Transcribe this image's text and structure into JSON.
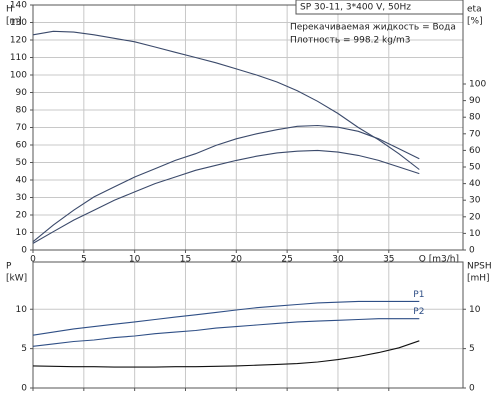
{
  "chart_data": [
    {
      "type": "line",
      "info": [
        "SP 30-11, 3*400 V, 50Hz",
        "Перекачиваемая жидкость = Вода",
        "Плотность = 998.2 kg/m3"
      ],
      "ylabel": "H",
      "yunit": "[m]",
      "y2label": "eta",
      "y2unit": "[%]",
      "xlabel": "Q [m3/h]",
      "xlim": [
        0,
        42.3
      ],
      "xticks": [
        0,
        5,
        10,
        15,
        20,
        25,
        30,
        35
      ],
      "xtick_labels": true,
      "ylim": [
        0,
        140
      ],
      "yticks": [
        0,
        10,
        20,
        30,
        40,
        50,
        60,
        70,
        80,
        90,
        100,
        110,
        120,
        130,
        140
      ],
      "y2lim": [
        0,
        147.6
      ],
      "y2ticks": [
        0,
        10,
        20,
        30,
        40,
        50,
        60,
        70,
        80,
        90,
        100
      ],
      "grid": true,
      "x": [
        0,
        2,
        4,
        6,
        8,
        10,
        12,
        14,
        16,
        18,
        20,
        22,
        24,
        26,
        28,
        30,
        32,
        34,
        36,
        38
      ],
      "series": [
        {
          "color": "#3b4a6b",
          "values": [
            123,
            125,
            124.5,
            123,
            121,
            119,
            116,
            113,
            110,
            107,
            103.5,
            100,
            96,
            91,
            85,
            78,
            70,
            63,
            55,
            46
          ]
        },
        {
          "color": "#3b4a6b",
          "axis": "y2",
          "values": [
            5,
            15,
            24,
            32,
            38,
            44,
            49,
            54,
            58,
            63,
            67,
            70,
            72.5,
            74.5,
            75,
            74,
            71.5,
            67,
            61,
            55
          ]
        },
        {
          "color": "#3b4a6b",
          "axis": "y2",
          "values": [
            4,
            11,
            18,
            24,
            30,
            35,
            40,
            44,
            48,
            51,
            54,
            56.5,
            58.5,
            59.5,
            60,
            59,
            57,
            54,
            50,
            46
          ]
        }
      ]
    },
    {
      "type": "line",
      "ylabel": "P",
      "yunit": "[kW]",
      "y2label": "NPSH",
      "y2unit": "[mH]",
      "xlim": [
        0,
        42.3
      ],
      "xticks": [
        0,
        5,
        10,
        15,
        20,
        25,
        30,
        35
      ],
      "xtick_labels": false,
      "ylim": [
        0,
        16
      ],
      "yticks": [
        0,
        5,
        10
      ],
      "y2lim": [
        0,
        16
      ],
      "y2ticks": [
        0,
        5,
        10
      ],
      "grid": true,
      "x": [
        0,
        2,
        4,
        6,
        8,
        10,
        12,
        14,
        16,
        18,
        20,
        22,
        24,
        26,
        28,
        30,
        32,
        34,
        36,
        38
      ],
      "series": [
        {
          "name": "P1",
          "color": "#2f4f86",
          "values": [
            6.7,
            7.1,
            7.5,
            7.8,
            8.1,
            8.4,
            8.7,
            9,
            9.3,
            9.6,
            9.9,
            10.2,
            10.4,
            10.6,
            10.8,
            10.9,
            11,
            11,
            11,
            11
          ]
        },
        {
          "name": "P2",
          "color": "#2f4f86",
          "values": [
            5.3,
            5.6,
            5.9,
            6.1,
            6.4,
            6.6,
            6.9,
            7.1,
            7.3,
            7.6,
            7.8,
            8,
            8.2,
            8.4,
            8.5,
            8.6,
            8.7,
            8.8,
            8.8,
            8.8
          ]
        },
        {
          "color": "#111111",
          "axis": "y2",
          "values": [
            2.8,
            2.75,
            2.7,
            2.7,
            2.65,
            2.65,
            2.65,
            2.7,
            2.7,
            2.75,
            2.8,
            2.9,
            3,
            3.1,
            3.3,
            3.6,
            4,
            4.5,
            5.1,
            6
          ]
        }
      ]
    }
  ]
}
